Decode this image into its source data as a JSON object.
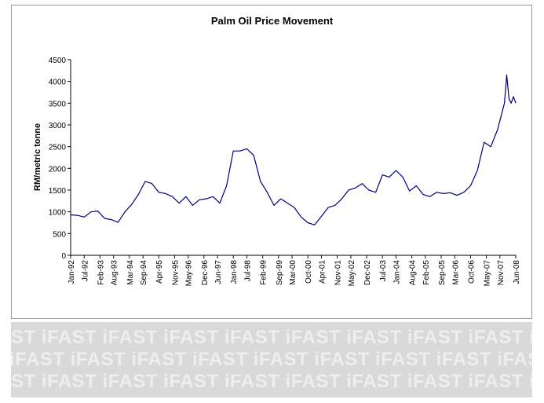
{
  "chart_data": {
    "type": "line",
    "title": "Palm Oil Price Movement",
    "xlabel": "",
    "ylabel": "RM/metric tonne",
    "ylim": [
      0,
      4500
    ],
    "yticks": [
      0,
      500,
      1000,
      1500,
      2000,
      2500,
      3000,
      3500,
      4000,
      4500
    ],
    "grid": false,
    "legend": "none",
    "line_color": "#000080",
    "xticks": [
      "Jan-92",
      "Jul-92",
      "Feb-93",
      "Aug-93",
      "Mar-94",
      "Sep-94",
      "Apr-95",
      "Nov-95",
      "May-96",
      "Dec-96",
      "Jun-97",
      "Jan-98",
      "Jul-98",
      "Feb-99",
      "Sep-99",
      "Mar-00",
      "Oct-00",
      "Apr-01",
      "Nov-01",
      "May-02",
      "Dec-02",
      "Jul-03",
      "Jan-04",
      "Aug-04",
      "Feb-05",
      "Sep-05",
      "Mar-06",
      "Oct-06",
      "May-07",
      "Nov-07",
      "Jun-08"
    ],
    "series": [
      {
        "x": [
          "Jan-92",
          "Apr-92",
          "Jul-92",
          "Oct-92",
          "Jan-93",
          "Apr-93",
          "Jul-93",
          "Oct-93",
          "Jan-94",
          "Apr-94",
          "Jul-94",
          "Oct-94",
          "Jan-95",
          "Apr-95",
          "Jul-95",
          "Oct-95",
          "Jan-96",
          "Apr-96",
          "Jul-96",
          "Oct-96",
          "Jan-97",
          "Apr-97",
          "Jul-97",
          "Oct-97",
          "Jan-98",
          "Apr-98",
          "Jul-98",
          "Oct-98",
          "Jan-99",
          "Apr-99",
          "Jul-99",
          "Oct-99",
          "Jan-00",
          "Apr-00",
          "Jul-00",
          "Oct-00",
          "Jan-01",
          "Apr-01",
          "Jul-01",
          "Oct-01",
          "Jan-02",
          "Apr-02",
          "Jul-02",
          "Oct-02",
          "Jan-03",
          "Apr-03",
          "Jul-03",
          "Oct-03",
          "Jan-04",
          "Apr-04",
          "Jul-04",
          "Oct-04",
          "Jan-05",
          "Apr-05",
          "Jul-05",
          "Oct-05",
          "Jan-06",
          "Apr-06",
          "Jul-06",
          "Oct-06",
          "Jan-07",
          "Apr-07",
          "Jul-07",
          "Oct-07",
          "Jan-08",
          "Feb-08",
          "Mar-08",
          "Apr-08",
          "May-08",
          "Jun-08"
        ],
        "values": [
          930,
          920,
          880,
          1000,
          1020,
          850,
          820,
          760,
          1000,
          1170,
          1400,
          1700,
          1650,
          1450,
          1420,
          1350,
          1200,
          1350,
          1150,
          1280,
          1300,
          1350,
          1200,
          1600,
          2400,
          2400,
          2450,
          2300,
          1700,
          1450,
          1150,
          1300,
          1200,
          1100,
          880,
          750,
          700,
          900,
          1100,
          1150,
          1300,
          1500,
          1550,
          1650,
          1500,
          1450,
          1850,
          1800,
          1950,
          1800,
          1480,
          1600,
          1400,
          1350,
          1450,
          1420,
          1440,
          1380,
          1450,
          1600,
          1950,
          2600,
          2500,
          2900,
          3500,
          4150,
          3600,
          3500,
          3650,
          3500
        ]
      }
    ]
  },
  "watermark": {
    "rows": [
      "ST iFAST iFAST iFAST iFAST iFAST iFAST iFAST iFAST iFA",
      " iFAST iFAST iFAST iFAST iFAST iFAST iFAST iFAST iFAST",
      "ST iFAST iFAST iFAST iFAST iFAST iFAST iFAST iFAST iFA"
    ]
  }
}
